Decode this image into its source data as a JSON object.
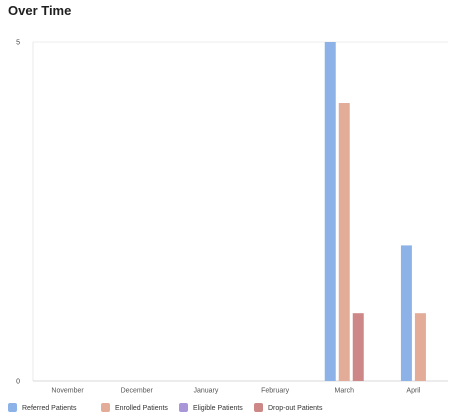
{
  "header": {
    "title": "Over Time"
  },
  "chart_data": {
    "type": "bar",
    "categories": [
      "November",
      "December",
      "January",
      "February",
      "March",
      "April"
    ],
    "series": [
      {
        "name": "Referred Patients",
        "values": [
          0,
          0,
          0,
          0,
          5,
          2
        ],
        "color": "#8db2e8"
      },
      {
        "name": "Enrolled Patients",
        "values": [
          0,
          0,
          0,
          0,
          4.1,
          1
        ],
        "color": "#e2ac99"
      },
      {
        "name": "Eligible Patients",
        "values": [
          0,
          0,
          0,
          0,
          0,
          0
        ],
        "color": "#a996d8"
      },
      {
        "name": "Drop-out Patients",
        "values": [
          0,
          0,
          0,
          0,
          1,
          0
        ],
        "color": "#cd8786"
      }
    ],
    "ylim": [
      0,
      5
    ],
    "yticks": [
      "0",
      "5"
    ],
    "grid": false,
    "legend": "bottom-left"
  }
}
